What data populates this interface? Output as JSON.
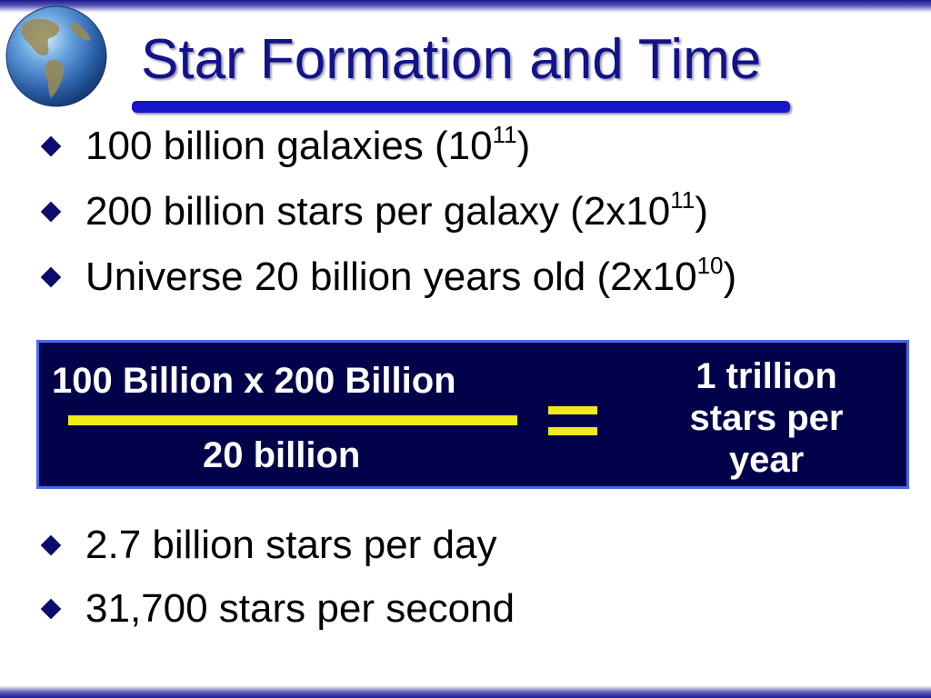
{
  "slide": {
    "title": "Star Formation and Time",
    "bullets_top": [
      {
        "text": "100 billion galaxies  (10",
        "sup": "11",
        "suffix": ")"
      },
      {
        "text": "200 billion stars per galaxy (2x10",
        "sup": "11",
        "suffix": ")"
      },
      {
        "text": "Universe 20 billion years old (2x10",
        "sup": "10",
        "suffix": ")"
      }
    ],
    "equation": {
      "numerator": "100 Billion  x  200 Billion",
      "denominator": "20 billion",
      "result": "1 trillion stars per year"
    },
    "bullets_bottom": [
      {
        "text": "2.7 billion stars per day"
      },
      {
        "text": "31,700 stars per second"
      }
    ]
  },
  "icons": {
    "logo": "globe-icon",
    "bullet": "diamond-bullet-icon"
  },
  "colors": {
    "title": "#12128a",
    "underline": "#1616c8",
    "box_background": "#02024a",
    "box_border": "#4a6ae6",
    "accent": "#f2ea1a",
    "bullet": "#0c0c6e"
  }
}
